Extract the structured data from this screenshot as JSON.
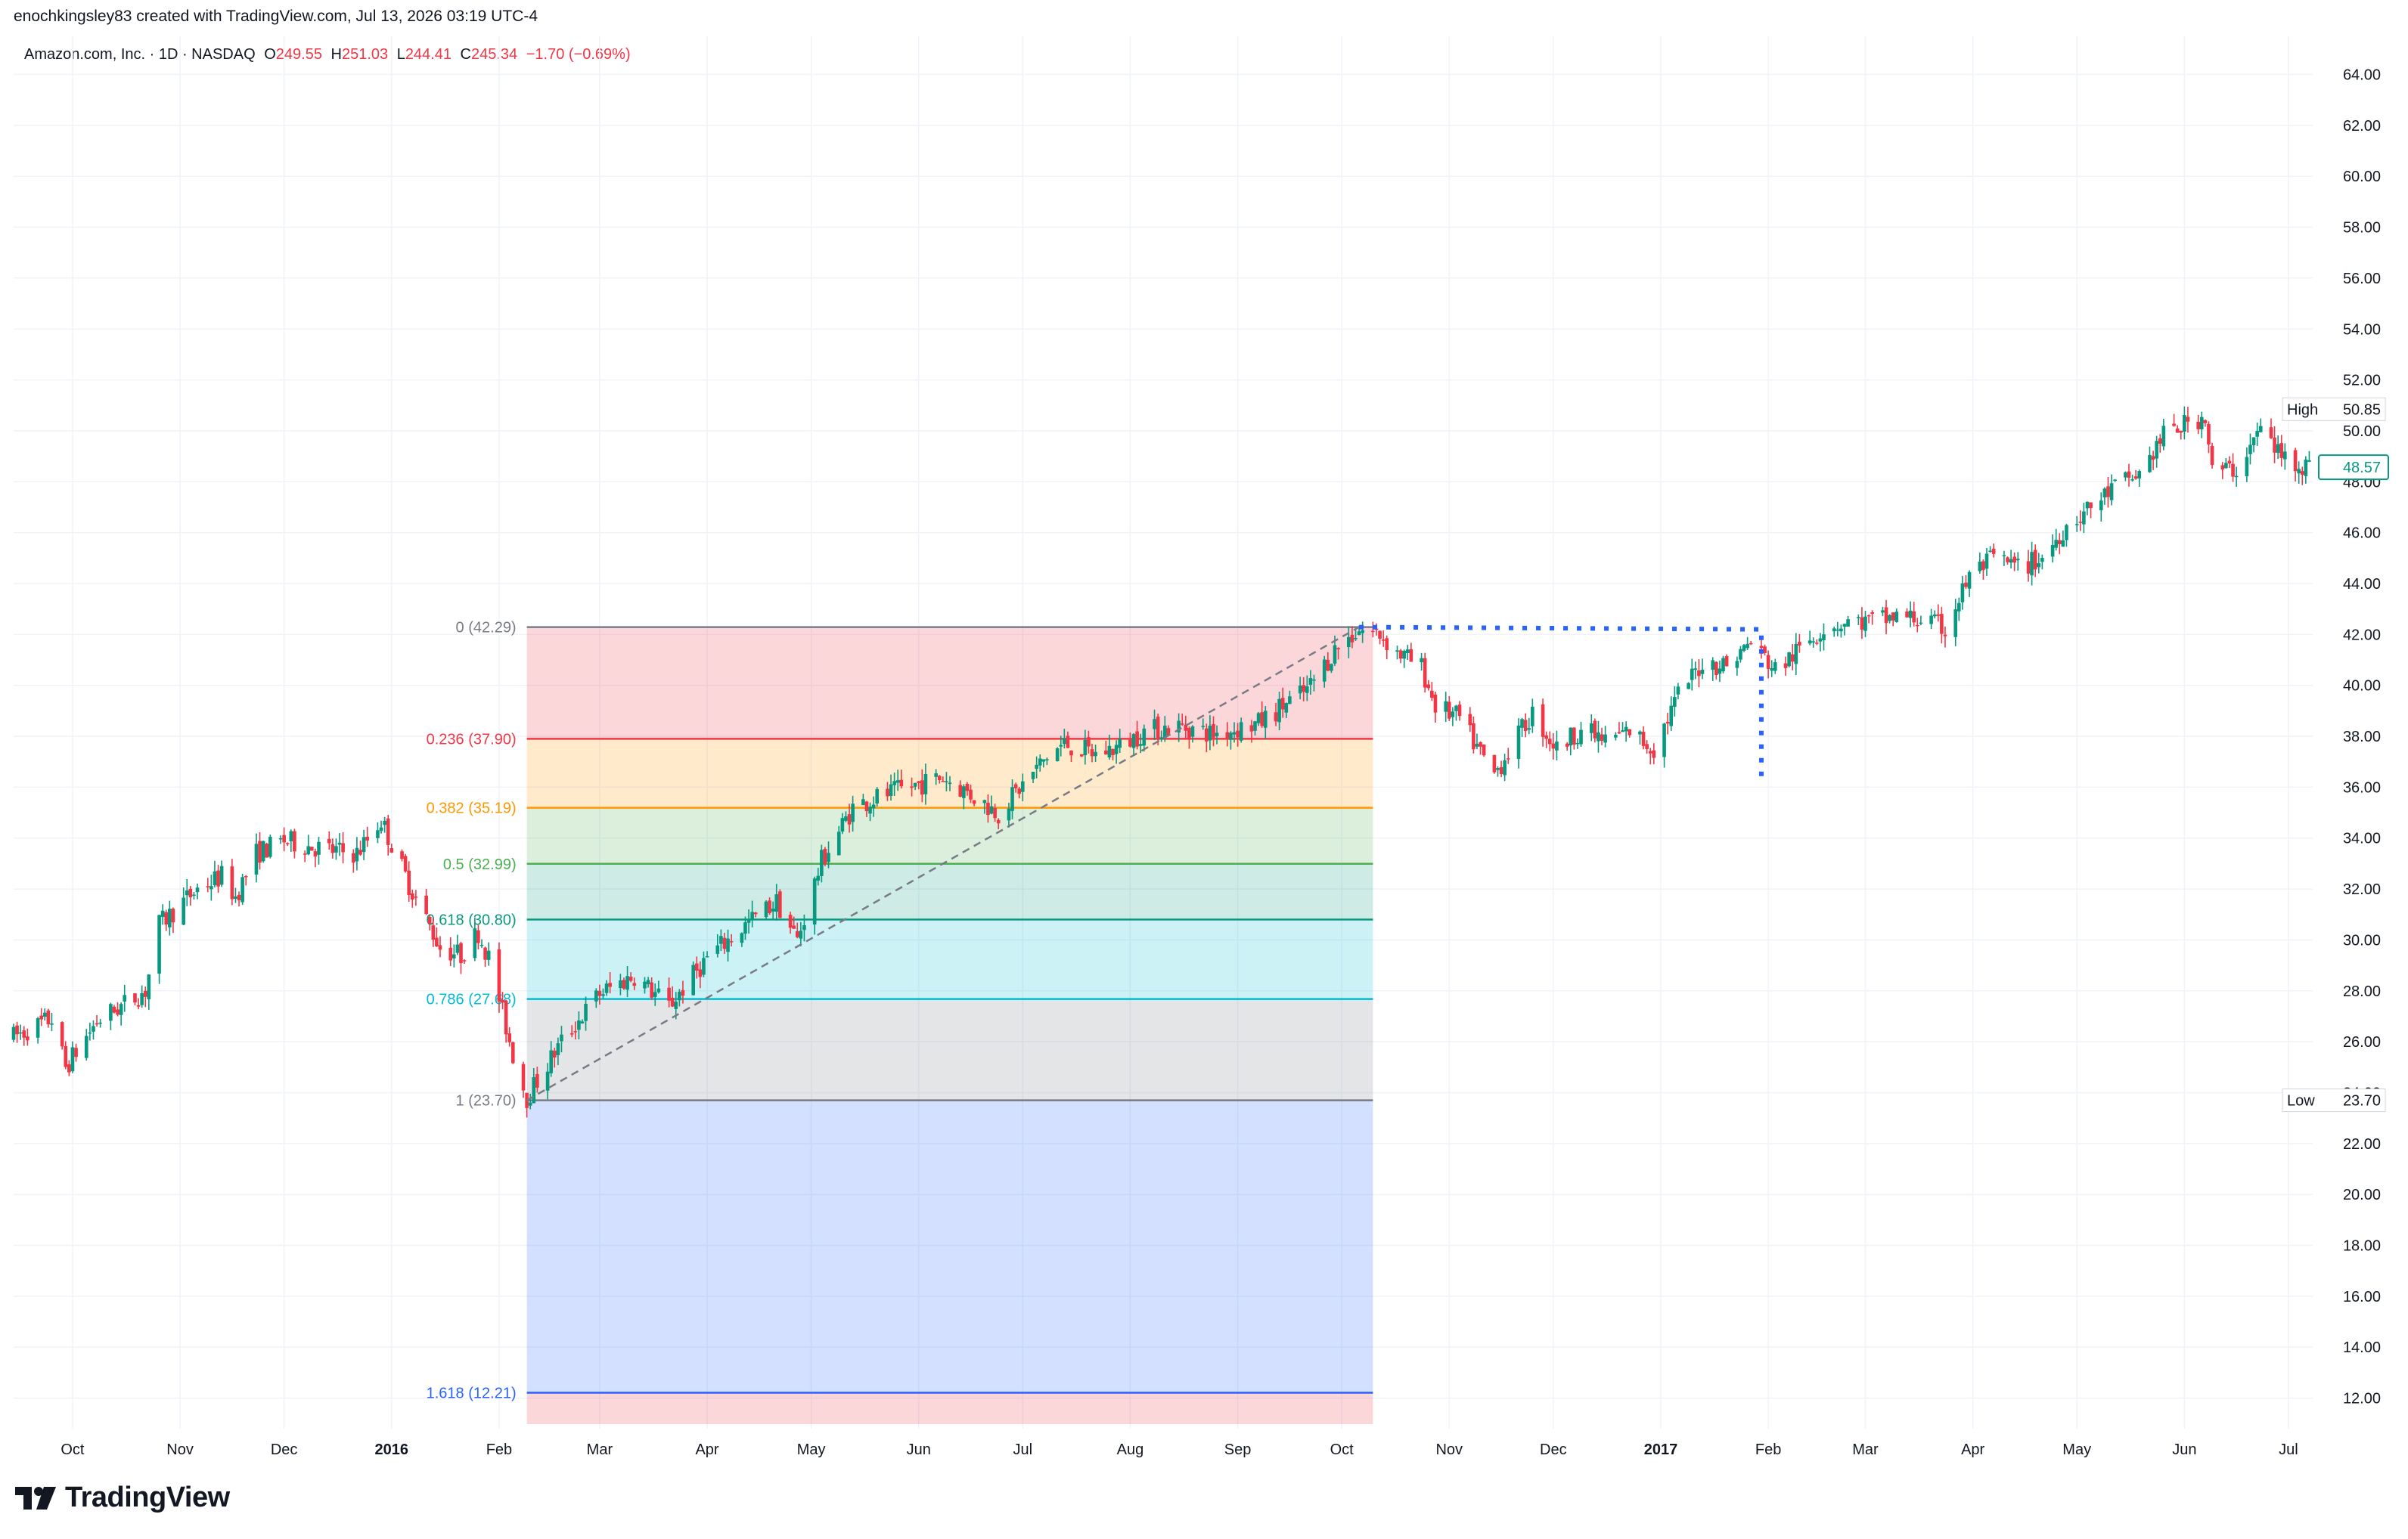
{
  "header": {
    "attribution": "enochkingsley83 created with TradingView.com, Jul 13, 2026 03:19 UTC-4"
  },
  "legend": {
    "symbol": "Amazon.com, Inc. · 1D · NASDAQ",
    "o_label": "O",
    "o_value": "249.55",
    "h_label": "H",
    "h_value": "251.03",
    "l_label": "L",
    "l_value": "244.41",
    "c_label": "C",
    "c_value": "245.34",
    "change": "−1.70 (−0.69%)"
  },
  "brand": {
    "name": "TradingView"
  },
  "colors": {
    "up": "#089981",
    "down": "#f23645",
    "grid": "#f0f3fa",
    "axis_text": "#131722",
    "trendline": "#787b86",
    "dotted_line": "#2962ff"
  },
  "chart_data": {
    "type": "candlestick",
    "title": "",
    "y_ticks": [
      12,
      14,
      16,
      18,
      20,
      22,
      24,
      26,
      28,
      30,
      32,
      34,
      36,
      38,
      40,
      42,
      44,
      46,
      48,
      50,
      52,
      54,
      56,
      58,
      60,
      62,
      64
    ],
    "y_tick_labels": [
      "12.00",
      "14.00",
      "16.00",
      "18.00",
      "20.00",
      "22.00",
      "24.00",
      "26.00",
      "28.00",
      "30.00",
      "32.00",
      "34.00",
      "36.00",
      "38.00",
      "40.00",
      "42.00",
      "44.00",
      "46.00",
      "48.00",
      "50.00",
      "52.00",
      "54.00",
      "56.00",
      "58.00",
      "60.00",
      "62.00",
      "64.00"
    ],
    "ylim": [
      10.8,
      65.5
    ],
    "x_range": [
      "2015-09-14",
      "2017-07-08"
    ],
    "x_ticks": [
      {
        "date": "2015-10-01",
        "label": "Oct",
        "bold": false
      },
      {
        "date": "2015-11-01",
        "label": "Nov",
        "bold": false
      },
      {
        "date": "2015-12-01",
        "label": "Dec",
        "bold": false
      },
      {
        "date": "2016-01-01",
        "label": "2016",
        "bold": true
      },
      {
        "date": "2016-02-01",
        "label": "Feb",
        "bold": false
      },
      {
        "date": "2016-03-01",
        "label": "Mar",
        "bold": false
      },
      {
        "date": "2016-04-01",
        "label": "Apr",
        "bold": false
      },
      {
        "date": "2016-05-01",
        "label": "May",
        "bold": false
      },
      {
        "date": "2016-06-01",
        "label": "Jun",
        "bold": false
      },
      {
        "date": "2016-07-01",
        "label": "Jul",
        "bold": false
      },
      {
        "date": "2016-08-01",
        "label": "Aug",
        "bold": false
      },
      {
        "date": "2016-09-01",
        "label": "Sep",
        "bold": false
      },
      {
        "date": "2016-10-01",
        "label": "Oct",
        "bold": false
      },
      {
        "date": "2016-11-01",
        "label": "Nov",
        "bold": false
      },
      {
        "date": "2016-12-01",
        "label": "Dec",
        "bold": false
      },
      {
        "date": "2017-01-01",
        "label": "2017",
        "bold": true
      },
      {
        "date": "2017-02-01",
        "label": "Feb",
        "bold": false
      },
      {
        "date": "2017-03-01",
        "label": "Mar",
        "bold": false
      },
      {
        "date": "2017-04-01",
        "label": "Apr",
        "bold": false
      },
      {
        "date": "2017-05-01",
        "label": "May",
        "bold": false
      },
      {
        "date": "2017-06-01",
        "label": "Jun",
        "bold": false
      },
      {
        "date": "2017-07-01",
        "label": "Jul",
        "bold": false
      }
    ],
    "price_path": [
      [
        "2015-09-14",
        26.2
      ],
      [
        "2015-09-25",
        26.9
      ],
      [
        "2015-09-29",
        25.0
      ],
      [
        "2015-10-08",
        26.8
      ],
      [
        "2015-10-22",
        28.0
      ],
      [
        "2015-10-26",
        30.6
      ],
      [
        "2015-11-06",
        32.0
      ],
      [
        "2015-11-13",
        32.5
      ],
      [
        "2015-11-17",
        31.7
      ],
      [
        "2015-11-23",
        33.4
      ],
      [
        "2015-12-01",
        33.9
      ],
      [
        "2015-12-15",
        33.5
      ],
      [
        "2015-12-22",
        33.4
      ],
      [
        "2015-12-29",
        34.7
      ],
      [
        "2016-01-06",
        32.2
      ],
      [
        "2016-01-15",
        29.7
      ],
      [
        "2016-01-21",
        29.4
      ],
      [
        "2016-01-26",
        30.3
      ],
      [
        "2016-01-29",
        29.3
      ],
      [
        "2016-02-05",
        25.5
      ],
      [
        "2016-02-09",
        23.8
      ],
      [
        "2016-02-19",
        26.0
      ],
      [
        "2016-03-01",
        27.9
      ],
      [
        "2016-03-11",
        28.6
      ],
      [
        "2016-03-21",
        27.4
      ],
      [
        "2016-04-01",
        29.3
      ],
      [
        "2016-04-14",
        30.8
      ],
      [
        "2016-04-21",
        31.5
      ],
      [
        "2016-04-27",
        30.0
      ],
      [
        "2016-05-04",
        33.1
      ],
      [
        "2016-05-13",
        35.2
      ],
      [
        "2016-05-20",
        35.6
      ],
      [
        "2016-05-27",
        35.9
      ],
      [
        "2016-06-08",
        36.4
      ],
      [
        "2016-06-15",
        35.8
      ],
      [
        "2016-06-24",
        35.0
      ],
      [
        "2016-07-08",
        37.2
      ],
      [
        "2016-07-13",
        37.7
      ],
      [
        "2016-07-22",
        37.3
      ],
      [
        "2016-07-29",
        37.6
      ],
      [
        "2016-08-05",
        38.2
      ],
      [
        "2016-08-15",
        38.4
      ],
      [
        "2016-08-25",
        38.1
      ],
      [
        "2016-09-07",
        38.5
      ],
      [
        "2016-09-14",
        39.2
      ],
      [
        "2016-09-21",
        39.8
      ],
      [
        "2016-09-29",
        41.4
      ],
      [
        "2016-10-06",
        42.2
      ],
      [
        "2016-10-12",
        42.0
      ],
      [
        "2016-10-17",
        41.3
      ],
      [
        "2016-10-24",
        40.7
      ],
      [
        "2016-10-28",
        39.2
      ],
      [
        "2016-11-04",
        38.7
      ],
      [
        "2016-11-10",
        37.3
      ],
      [
        "2016-11-14",
        36.5
      ],
      [
        "2016-11-18",
        37.4
      ],
      [
        "2016-11-25",
        38.9
      ],
      [
        "2016-12-02",
        37.5
      ],
      [
        "2016-12-09",
        38.3
      ],
      [
        "2016-12-16",
        37.8
      ],
      [
        "2016-12-23",
        38.2
      ],
      [
        "2016-12-30",
        37.5
      ],
      [
        "2017-01-06",
        39.6
      ],
      [
        "2017-01-13",
        40.9
      ],
      [
        "2017-01-20",
        40.8
      ],
      [
        "2017-01-27",
        41.7
      ],
      [
        "2017-02-03",
        40.6
      ],
      [
        "2017-02-10",
        41.4
      ],
      [
        "2017-02-17",
        42.3
      ],
      [
        "2017-02-24",
        42.5
      ],
      [
        "2017-03-03",
        42.5
      ],
      [
        "2017-03-10",
        42.7
      ],
      [
        "2017-03-17",
        42.6
      ],
      [
        "2017-03-24",
        42.2
      ],
      [
        "2017-03-31",
        44.3
      ],
      [
        "2017-04-07",
        45.0
      ],
      [
        "2017-04-14",
        44.6
      ],
      [
        "2017-04-21",
        45.0
      ],
      [
        "2017-04-28",
        46.3
      ],
      [
        "2017-05-05",
        47.0
      ],
      [
        "2017-05-12",
        47.8
      ],
      [
        "2017-05-19",
        48.3
      ],
      [
        "2017-05-26",
        49.8
      ],
      [
        "2017-06-02",
        50.3
      ],
      [
        "2017-06-07",
        50.6
      ],
      [
        "2017-06-09",
        48.4
      ],
      [
        "2017-06-16",
        48.5
      ],
      [
        "2017-06-23",
        50.1
      ],
      [
        "2017-06-29",
        49.0
      ],
      [
        "2017-07-07",
        48.6
      ]
    ],
    "price_label": "48.57",
    "high": {
      "label": "High",
      "value": "50.85"
    },
    "low": {
      "label": "Low",
      "value": "23.70"
    },
    "fib": {
      "start_date": "2016-02-09",
      "end_date": "2016-10-10",
      "levels": [
        {
          "ratio": 0,
          "price": 42.29,
          "label": "0 (42.29)",
          "color": "#787b86",
          "fill": "rgba(242,54,69,0.20)"
        },
        {
          "ratio": 0.236,
          "price": 37.9,
          "label": "0.236 (37.90)",
          "color": "#f23645",
          "fill": "rgba(255,152,0,0.20)"
        },
        {
          "ratio": 0.382,
          "price": 35.19,
          "label": "0.382 (35.19)",
          "color": "#ff9800",
          "fill": "rgba(76,175,80,0.20)"
        },
        {
          "ratio": 0.5,
          "price": 32.99,
          "label": "0.5 (32.99)",
          "color": "#4caf50",
          "fill": "rgba(8,153,129,0.20)"
        },
        {
          "ratio": 0.618,
          "price": 30.8,
          "label": "0.618 (30.80)",
          "color": "#089981",
          "fill": "rgba(0,188,212,0.20)"
        },
        {
          "ratio": 0.786,
          "price": 27.68,
          "label": "0.786 (27.68)",
          "color": "#00bcd4",
          "fill": "rgba(120,123,134,0.20)"
        },
        {
          "ratio": 1,
          "price": 23.7,
          "label": "1 (23.70)",
          "color": "#787b86",
          "fill": "rgba(41,98,255,0.20)"
        },
        {
          "ratio": 1.618,
          "price": 12.21,
          "label": "1.618 (12.21)",
          "color": "#2962ff",
          "fill": "rgba(242,54,69,0.20)"
        }
      ],
      "trendline": [
        [
          "2016-02-09",
          23.7
        ],
        [
          "2016-10-06",
          42.29
        ]
      ]
    },
    "dotted_path": [
      [
        "2016-10-06",
        42.29
      ],
      [
        "2017-01-30",
        42.2
      ],
      [
        "2017-01-30",
        36.2
      ]
    ]
  }
}
